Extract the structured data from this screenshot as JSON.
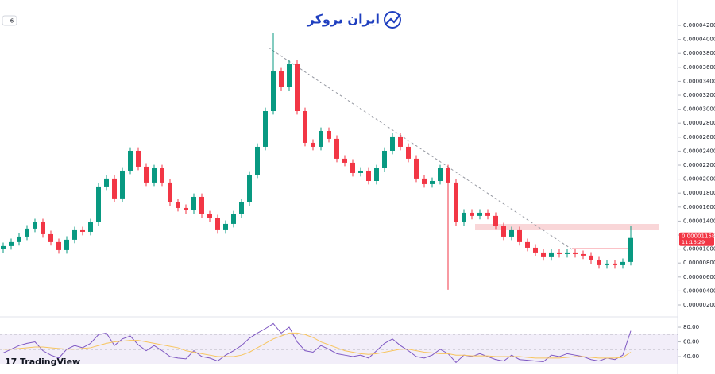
{
  "brand": "ایران بروکر",
  "platform": "TradingView",
  "collapse_count": "6",
  "chart_data": {
    "type": "candlestick",
    "color_up": "#089981",
    "color_down": "#f23645",
    "open": [
      1e-05,
      1.042e-05,
      1.099e-05,
      1.178e-05,
      1.292e-05,
      1.383e-05,
      1.212e-05,
      1.099e-05,
      9.85e-06,
      1.133e-05,
      1.269e-05,
      1.246e-05,
      1.383e-05,
      1.894e-05,
      2.008e-05,
      1.724e-05,
      2.121e-05,
      2.405e-05,
      2.178e-05,
      1.951e-05,
      2.155e-05,
      1.951e-05,
      1.667e-05,
      1.587e-05,
      1.553e-05,
      1.746e-05,
      1.496e-05,
      1.44e-05,
      1.269e-05,
      1.36e-05,
      1.496e-05,
      1.667e-05,
      2.064e-05,
      2.462e-05,
      2.973e-05,
      3.541e-05,
      3.314e-05,
      3.655e-05,
      2.973e-05,
      2.519e-05,
      2.462e-05,
      2.689e-05,
      2.576e-05,
      2.292e-05,
      2.235e-05,
      2.087e-05,
      2.121e-05,
      1.973e-05,
      2.155e-05,
      2.405e-05,
      2.61e-05,
      2.462e-05,
      2.292e-05,
      2.008e-05,
      1.928e-05,
      1.973e-05,
      2.155e-05,
      1.951e-05,
      1.383e-05,
      1.519e-05,
      1.474e-05,
      1.519e-05,
      1.474e-05,
      1.326e-05,
      1.178e-05,
      1.269e-05,
      1.099e-05,
      1.019e-05,
      9.51e-06,
      8.83e-06,
      9.51e-06,
      9.28e-06,
      9.51e-06,
      9.28e-06,
      9.06e-06,
      8.37e-06,
      7.69e-06,
      7.92e-06,
      7.69e-06,
      8.15e-06
    ],
    "high": [
      1.092e-05,
      1.149e-05,
      1.228e-05,
      1.342e-05,
      1.433e-05,
      1.433e-05,
      1.262e-05,
      1.149e-05,
      1.183e-05,
      1.319e-05,
      1.319e-05,
      1.433e-05,
      1.944e-05,
      2.058e-05,
      2.058e-05,
      2.171e-05,
      2.455e-05,
      2.455e-05,
      2.228e-05,
      2.205e-05,
      2.205e-05,
      2.001e-05,
      1.717e-05,
      1.637e-05,
      1.796e-05,
      1.796e-05,
      1.546e-05,
      1.49e-05,
      1.41e-05,
      1.546e-05,
      1.717e-05,
      2.114e-05,
      2.512e-05,
      3.023e-05,
      4.086e-05,
      3.591e-05,
      3.705e-05,
      3.705e-05,
      3.023e-05,
      2.569e-05,
      2.739e-05,
      2.739e-05,
      2.626e-05,
      2.342e-05,
      2.285e-05,
      2.171e-05,
      2.171e-05,
      2.205e-05,
      2.455e-05,
      2.66e-05,
      2.66e-05,
      2.512e-05,
      2.342e-05,
      2.058e-05,
      2.023e-05,
      2.205e-05,
      2.205e-05,
      2.001e-05,
      1.569e-05,
      1.569e-05,
      1.569e-05,
      1.569e-05,
      1.524e-05,
      1.376e-05,
      1.319e-05,
      1.319e-05,
      1.149e-05,
      1.069e-05,
      1.001e-05,
      1.001e-05,
      1.001e-05,
      1.001e-05,
      1.001e-05,
      9.78e-06,
      9.56e-06,
      8.87e-06,
      8.42e-06,
      8.42e-06,
      8.65e-06,
      1.33e-05
    ],
    "low": [
      9.5e-06,
      9.92e-06,
      1.049e-05,
      1.128e-05,
      1.242e-05,
      1.162e-05,
      1.049e-05,
      9.35e-06,
      9.35e-06,
      1.083e-05,
      1.196e-05,
      1.196e-05,
      1.333e-05,
      1.844e-05,
      1.674e-05,
      1.674e-05,
      2.071e-05,
      2.128e-05,
      1.901e-05,
      1.901e-05,
      1.901e-05,
      1.617e-05,
      1.537e-05,
      1.503e-05,
      1.503e-05,
      1.446e-05,
      1.39e-05,
      1.219e-05,
      1.219e-05,
      1.31e-05,
      1.446e-05,
      1.617e-05,
      2.014e-05,
      2.412e-05,
      2.923e-05,
      3.264e-05,
      3.264e-05,
      2.923e-05,
      2.469e-05,
      2.412e-05,
      2.412e-05,
      2.526e-05,
      2.242e-05,
      2.185e-05,
      2.037e-05,
      2.037e-05,
      1.923e-05,
      1.923e-05,
      2.105e-05,
      2.355e-05,
      2.412e-05,
      2.242e-05,
      1.958e-05,
      1.878e-05,
      1.878e-05,
      1.923e-05,
      4.17e-06,
      1.333e-05,
      1.333e-05,
      1.424e-05,
      1.424e-05,
      1.424e-05,
      1.276e-05,
      1.128e-05,
      1.128e-05,
      1.049e-05,
      9.69e-06,
      9.01e-06,
      8.33e-06,
      8.33e-06,
      8.78e-06,
      8.78e-06,
      8.78e-06,
      8.56e-06,
      7.87e-06,
      7.19e-06,
      7.19e-06,
      7.19e-06,
      7.19e-06,
      7.65e-06
    ],
    "close": [
      1.042e-05,
      1.099e-05,
      1.178e-05,
      1.292e-05,
      1.383e-05,
      1.212e-05,
      1.099e-05,
      9.85e-06,
      1.133e-05,
      1.269e-05,
      1.246e-05,
      1.383e-05,
      1.894e-05,
      2.008e-05,
      1.724e-05,
      2.121e-05,
      2.405e-05,
      2.178e-05,
      1.951e-05,
      2.155e-05,
      1.951e-05,
      1.667e-05,
      1.587e-05,
      1.553e-05,
      1.746e-05,
      1.496e-05,
      1.44e-05,
      1.269e-05,
      1.36e-05,
      1.496e-05,
      1.667e-05,
      2.064e-05,
      2.462e-05,
      2.973e-05,
      3.541e-05,
      3.314e-05,
      3.655e-05,
      2.973e-05,
      2.519e-05,
      2.462e-05,
      2.689e-05,
      2.576e-05,
      2.292e-05,
      2.235e-05,
      2.087e-05,
      2.121e-05,
      1.973e-05,
      2.155e-05,
      2.405e-05,
      2.61e-05,
      2.462e-05,
      2.292e-05,
      2.008e-05,
      1.928e-05,
      1.973e-05,
      2.155e-05,
      1.951e-05,
      1.383e-05,
      1.519e-05,
      1.474e-05,
      1.519e-05,
      1.474e-05,
      1.326e-05,
      1.178e-05,
      1.269e-05,
      1.099e-05,
      1.019e-05,
      9.51e-06,
      8.83e-06,
      9.51e-06,
      9.28e-06,
      9.51e-06,
      9.28e-06,
      9.06e-06,
      8.37e-06,
      7.69e-06,
      7.92e-06,
      7.69e-06,
      8.15e-06,
      1.158e-05
    ],
    "ylim": [
      4.1e-07,
      4.564e-05
    ],
    "yticks": [
      {
        "value": 2e-06,
        "label": "0.00000200"
      },
      {
        "value": 4e-06,
        "label": "0.00000400"
      },
      {
        "value": 6e-06,
        "label": "0.00000600"
      },
      {
        "value": 8e-06,
        "label": "0.00000800"
      },
      {
        "value": 1e-05,
        "label": "0.00001000"
      },
      {
        "value": 1.2e-05,
        "label": "0.00001200"
      },
      {
        "value": 1.4e-05,
        "label": "0.00001400"
      },
      {
        "value": 1.6e-05,
        "label": "0.00001600"
      },
      {
        "value": 1.8e-05,
        "label": "0.00001800"
      },
      {
        "value": 2e-05,
        "label": "0.00002000"
      },
      {
        "value": 2.2e-05,
        "label": "0.00002200"
      },
      {
        "value": 2.4e-05,
        "label": "0.00002400"
      },
      {
        "value": 2.6e-05,
        "label": "0.00002600"
      },
      {
        "value": 2.8e-05,
        "label": "0.00002800"
      },
      {
        "value": 3e-05,
        "label": "0.00003000"
      },
      {
        "value": 3.2e-05,
        "label": "0.00003200"
      },
      {
        "value": 3.4e-05,
        "label": "0.00003400"
      },
      {
        "value": 3.6e-05,
        "label": "0.00003600"
      },
      {
        "value": 3.8e-05,
        "label": "0.00003800"
      },
      {
        "value": 4e-05,
        "label": "0.00004000"
      },
      {
        "value": 4.2e-05,
        "label": "0.00004200"
      }
    ],
    "last_price": {
      "value": 1.158e-05,
      "label": "0.00001158"
    },
    "countdown": "11:16:29",
    "indicator": {
      "type": "line",
      "series": [
        {
          "color": "#7e57c2",
          "values": [
            45,
            50,
            55,
            58,
            60,
            48,
            42,
            38,
            50,
            55,
            52,
            58,
            70,
            72,
            55,
            64,
            68,
            56,
            48,
            55,
            48,
            40,
            38,
            37,
            48,
            40,
            38,
            34,
            42,
            48,
            55,
            65,
            72,
            78,
            85,
            72,
            80,
            60,
            48,
            46,
            55,
            50,
            44,
            42,
            40,
            42,
            38,
            48,
            58,
            64,
            55,
            48,
            40,
            38,
            42,
            50,
            44,
            32,
            42,
            40,
            44,
            40,
            36,
            34,
            42,
            36,
            35,
            34,
            33,
            42,
            40,
            44,
            42,
            40,
            36,
            34,
            38,
            36,
            42,
            75
          ]
        },
        {
          "color": "#f7c55f",
          "values": [
            50,
            50,
            51,
            52,
            53,
            53,
            52,
            51,
            50,
            50,
            51,
            52,
            55,
            58,
            60,
            61,
            62,
            62,
            60,
            58,
            56,
            54,
            52,
            48,
            46,
            44,
            42,
            40,
            40,
            40,
            42,
            46,
            52,
            58,
            64,
            68,
            72,
            72,
            70,
            66,
            60,
            56,
            52,
            48,
            46,
            44,
            43,
            44,
            46,
            48,
            50,
            50,
            48,
            46,
            45,
            44,
            44,
            42,
            42,
            41,
            41,
            41,
            40,
            40,
            40,
            40,
            39,
            38,
            38,
            38,
            38,
            39,
            40,
            40,
            39,
            38,
            38,
            38,
            39,
            46
          ]
        }
      ],
      "ylim": [
        26,
        93
      ],
      "yticks": [
        {
          "value": 80,
          "label": "80.00"
        },
        {
          "value": 60,
          "label": "60.00"
        },
        {
          "value": 40,
          "label": "40.00"
        }
      ]
    }
  }
}
